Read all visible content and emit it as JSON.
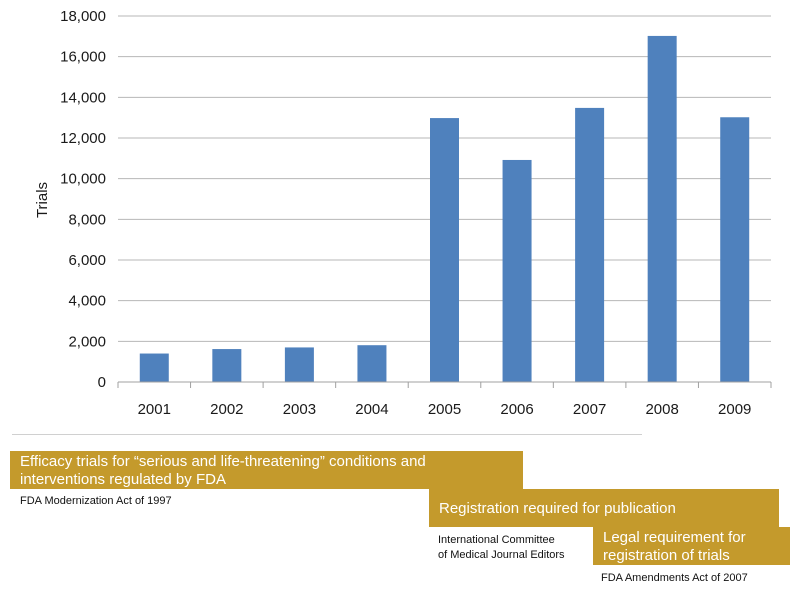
{
  "chart_data": {
    "type": "bar",
    "categories": [
      "2001",
      "2002",
      "2003",
      "2004",
      "2005",
      "2006",
      "2007",
      "2008",
      "2009"
    ],
    "values": [
      1400,
      1620,
      1700,
      1810,
      12980,
      10920,
      13480,
      17020,
      13020
    ],
    "ylabel": "Trials",
    "ylim": [
      0,
      18000
    ],
    "yticks": [
      "0",
      "2,000",
      "4,000",
      "6,000",
      "8,000",
      "10,000",
      "12,000",
      "14,000",
      "16,000",
      "18,000"
    ],
    "grid": true,
    "bar_color": "#4f81bd"
  },
  "annotations": {
    "band_color": "#c49a2c",
    "items": [
      {
        "band_line1": "Efficacy trials for “serious and life-threatening” conditions and",
        "band_line2": "interventions regulated by FDA",
        "caption_line1": "FDA Modernization Act of 1997",
        "caption_line2": ""
      },
      {
        "band_line1": "Registration required for publication",
        "band_line2": "",
        "caption_line1": "International Committee",
        "caption_line2": "of Medical Journal Editors"
      },
      {
        "band_line1": "Legal requirement for",
        "band_line2": "registration of trials",
        "caption_line1": "FDA Amendments Act of 2007",
        "caption_line2": ""
      }
    ]
  }
}
